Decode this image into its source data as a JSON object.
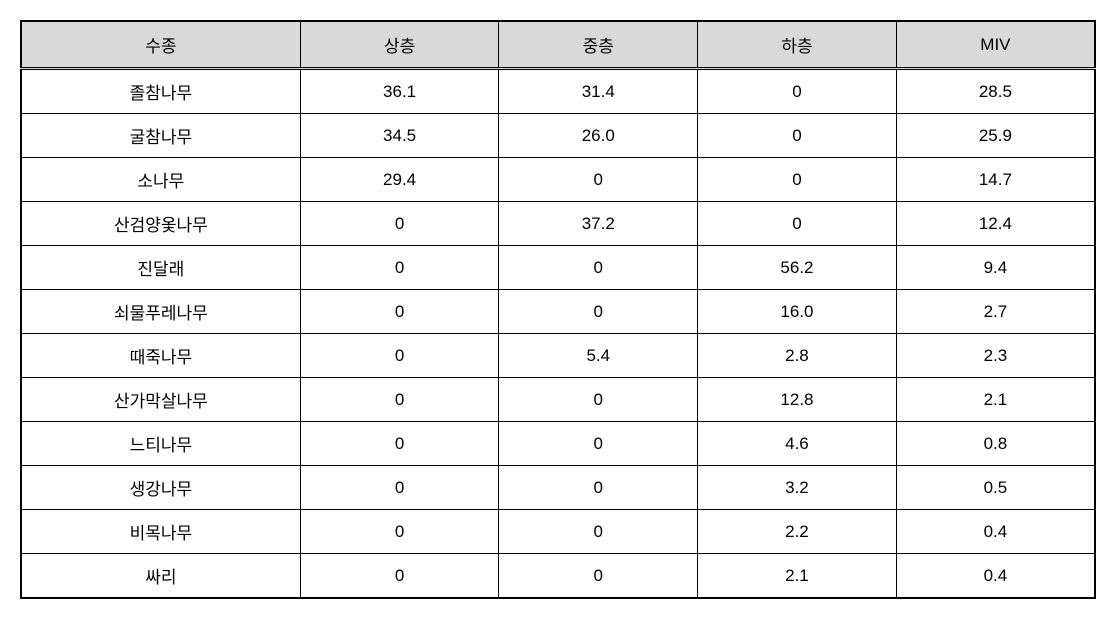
{
  "table": {
    "type": "table",
    "background_color": "#ffffff",
    "header_background": "#d9d9d9",
    "border_color": "#000000",
    "text_color": "#000000",
    "font_size": 17,
    "header_font_size": 17,
    "cell_padding": "9px 8px",
    "column_widths_pct": [
      26,
      18.5,
      18.5,
      18.5,
      18.5
    ],
    "text_align": "center",
    "columns": [
      "수종",
      "상층",
      "중층",
      "하층",
      "MIV"
    ],
    "rows": [
      [
        "졸참나무",
        "36.1",
        "31.4",
        "0",
        "28.5"
      ],
      [
        "굴참나무",
        "34.5",
        "26.0",
        "0",
        "25.9"
      ],
      [
        "소나무",
        "29.4",
        "0",
        "0",
        "14.7"
      ],
      [
        "산검양옻나무",
        "0",
        "37.2",
        "0",
        "12.4"
      ],
      [
        "진달래",
        "0",
        "0",
        "56.2",
        "9.4"
      ],
      [
        "쇠물푸레나무",
        "0",
        "0",
        "16.0",
        "2.7"
      ],
      [
        "때죽나무",
        "0",
        "5.4",
        "2.8",
        "2.3"
      ],
      [
        "산가막살나무",
        "0",
        "0",
        "12.8",
        "2.1"
      ],
      [
        "느티나무",
        "0",
        "0",
        "4.6",
        "0.8"
      ],
      [
        "생강나무",
        "0",
        "0",
        "3.2",
        "0.5"
      ],
      [
        "비목나무",
        "0",
        "0",
        "2.2",
        "0.4"
      ],
      [
        "싸리",
        "0",
        "0",
        "2.1",
        "0.4"
      ]
    ]
  }
}
